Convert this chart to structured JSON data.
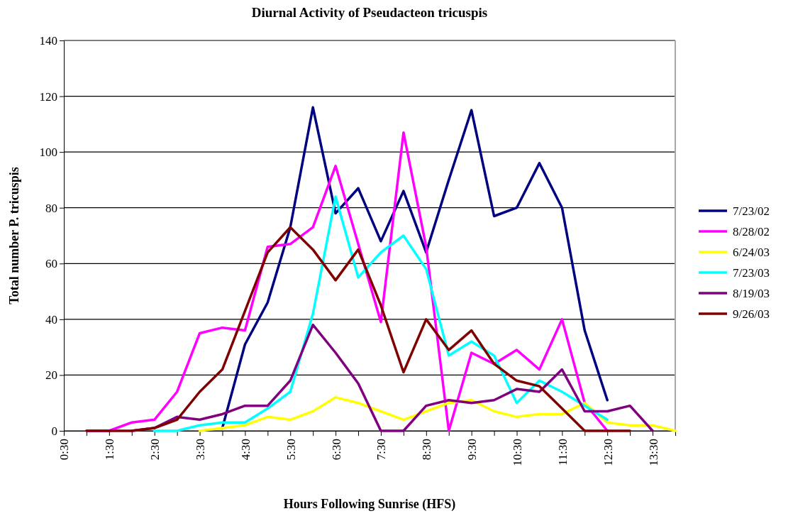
{
  "chart_data": {
    "type": "line",
    "title": "Diurnal Activity of Pseudacteon tricuspis",
    "xlabel": "Hours Following Sunrise (HFS)",
    "ylabel": "Total number P. tricuspis",
    "x": [
      1,
      1.5,
      2,
      2.5,
      3,
      3.5,
      4,
      4.5,
      5,
      5.5,
      6,
      6.5,
      7,
      7.5,
      8,
      8.5,
      9,
      9.5,
      10,
      10.5,
      11,
      11.5,
      12,
      12.5,
      13,
      13.5,
      14
    ],
    "series": [
      {
        "name": "7/23/02",
        "color": "#000080",
        "values": [
          null,
          null,
          null,
          null,
          null,
          null,
          1,
          31,
          46,
          73,
          116,
          78,
          87,
          68,
          86,
          64,
          90,
          115,
          77,
          80,
          96,
          80,
          36,
          11,
          null,
          null,
          null
        ]
      },
      {
        "name": "8/28/02",
        "color": "#ff00ff",
        "values": [
          0,
          0,
          3,
          4,
          14,
          35,
          37,
          36,
          66,
          67,
          73,
          95,
          67,
          39,
          107,
          66,
          0,
          28,
          24,
          29,
          22,
          40,
          10,
          0,
          null,
          null,
          null
        ]
      },
      {
        "name": "6/24/03",
        "color": "#ffff00",
        "values": [
          null,
          null,
          null,
          null,
          null,
          0,
          1,
          2,
          5,
          4,
          7,
          12,
          10,
          7,
          4,
          7,
          10,
          11,
          7,
          5,
          6,
          6,
          10,
          3,
          2,
          2,
          0
        ]
      },
      {
        "name": "7/23/03",
        "color": "#00ffff",
        "values": [
          null,
          null,
          null,
          0,
          0,
          2,
          3,
          3,
          8,
          14,
          42,
          84,
          55,
          64,
          70,
          58,
          27,
          32,
          27,
          10,
          18,
          14,
          9,
          4,
          null,
          null,
          null
        ]
      },
      {
        "name": "8/19/03",
        "color": "#800080",
        "values": [
          null,
          null,
          0,
          1,
          5,
          4,
          6,
          9,
          9,
          18,
          38,
          28,
          17,
          0,
          0,
          9,
          11,
          10,
          11,
          15,
          14,
          22,
          7,
          7,
          9,
          0,
          null
        ]
      },
      {
        "name": "9/26/03",
        "color": "#800000",
        "values": [
          0,
          0,
          0,
          1,
          4,
          14,
          22,
          43,
          64,
          73,
          65,
          54,
          65,
          45,
          21,
          40,
          29,
          36,
          24,
          18,
          16,
          8,
          0,
          0,
          0,
          null,
          null
        ]
      }
    ],
    "xlim": [
      0.5,
      14
    ],
    "xticks": [
      {
        "value": 0.5,
        "label": "0:30"
      },
      {
        "value": 1,
        "label": null
      },
      {
        "value": 1.5,
        "label": "1:30"
      },
      {
        "value": 2,
        "label": null
      },
      {
        "value": 2.5,
        "label": "2:30"
      },
      {
        "value": 3,
        "label": null
      },
      {
        "value": 3.5,
        "label": "3:30"
      },
      {
        "value": 4,
        "label": null
      },
      {
        "value": 4.5,
        "label": "4:30"
      },
      {
        "value": 5,
        "label": null
      },
      {
        "value": 5.5,
        "label": "5:30"
      },
      {
        "value": 6,
        "label": null
      },
      {
        "value": 6.5,
        "label": "6:30"
      },
      {
        "value": 7,
        "label": null
      },
      {
        "value": 7.5,
        "label": "7:30"
      },
      {
        "value": 8,
        "label": null
      },
      {
        "value": 8.5,
        "label": "8:30"
      },
      {
        "value": 9,
        "label": null
      },
      {
        "value": 9.5,
        "label": "9:30"
      },
      {
        "value": 10,
        "label": null
      },
      {
        "value": 10.5,
        "label": "10:30"
      },
      {
        "value": 11,
        "label": null
      },
      {
        "value": 11.5,
        "label": "11:30"
      },
      {
        "value": 12,
        "label": null
      },
      {
        "value": 12.5,
        "label": "12:30"
      },
      {
        "value": 13,
        "label": null
      },
      {
        "value": 13.5,
        "label": "13:30"
      },
      {
        "value": 14,
        "label": null
      }
    ],
    "ylim": [
      0,
      140
    ],
    "yticks": [
      0,
      20,
      40,
      60,
      80,
      100,
      120,
      140
    ],
    "grid": "y",
    "legend": "right"
  }
}
